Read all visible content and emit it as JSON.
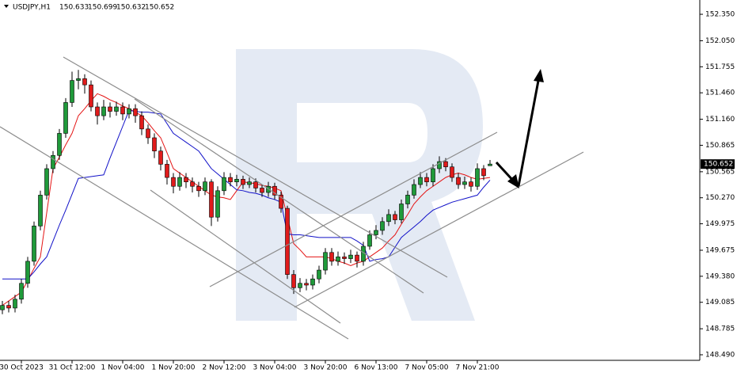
{
  "chart_data": {
    "type": "candlestick",
    "symbol": "USDJPY,H1",
    "categories": [
      null,
      null,
      null,
      "30 Oct 2023",
      null,
      null,
      null,
      null,
      null,
      null,
      null,
      "31 Oct 12:00",
      null,
      null,
      null,
      null,
      null,
      null,
      null,
      "1 Nov 04:00",
      null,
      null,
      null,
      null,
      null,
      null,
      null,
      "1 Nov 20:00",
      null,
      null,
      null,
      null,
      null,
      null,
      null,
      "2 Nov 12:00",
      null,
      null,
      null,
      null,
      null,
      null,
      null,
      "3 Nov 04:00",
      null,
      null,
      null,
      null,
      null,
      null,
      null,
      "3 Nov 20:00",
      null,
      null,
      null,
      null,
      null,
      null,
      null,
      "6 Nov 13:00",
      null,
      null,
      null,
      null,
      null,
      null,
      null,
      "7 Nov 05:00",
      null,
      null,
      null,
      null,
      null,
      null,
      null,
      "7 Nov 21:00",
      null,
      null
    ],
    "open": [
      149.0,
      149.05,
      149.02,
      149.12,
      149.3,
      149.55,
      149.95,
      150.3,
      150.6,
      150.75,
      151.0,
      151.35,
      151.6,
      151.62,
      151.55,
      151.3,
      151.2,
      151.3,
      151.25,
      151.3,
      151.22,
      151.28,
      151.2,
      151.05,
      150.95,
      150.8,
      150.65,
      150.5,
      150.4,
      150.5,
      150.45,
      150.4,
      150.35,
      150.45,
      150.05,
      150.35,
      150.5,
      150.45,
      150.48,
      150.42,
      150.45,
      150.38,
      150.33,
      150.4,
      150.3,
      150.15,
      149.4,
      149.25,
      149.3,
      149.28,
      149.35,
      149.45,
      149.65,
      149.55,
      149.6,
      149.58,
      149.62,
      149.55,
      149.72,
      149.85,
      149.9,
      150.0,
      150.08,
      150.02,
      150.2,
      150.3,
      150.42,
      150.5,
      150.45,
      150.6,
      150.68,
      150.62,
      150.5,
      150.42,
      150.45,
      150.4,
      150.6,
      150.633
    ],
    "high": [
      149.1,
      149.1,
      149.17,
      149.35,
      149.6,
      150.0,
      150.35,
      150.65,
      150.8,
      151.05,
      151.4,
      151.7,
      151.72,
      151.67,
      151.6,
      151.35,
      151.38,
      151.35,
      151.36,
      151.35,
      151.33,
      151.33,
      151.25,
      151.1,
      151.0,
      150.85,
      150.7,
      150.55,
      150.56,
      150.55,
      150.5,
      150.45,
      150.5,
      150.48,
      150.4,
      150.56,
      150.55,
      150.53,
      150.52,
      150.5,
      150.49,
      150.42,
      150.45,
      150.44,
      150.34,
      150.18,
      149.45,
      149.36,
      149.35,
      149.4,
      149.5,
      149.7,
      149.7,
      149.66,
      149.65,
      149.68,
      149.66,
      149.77,
      149.9,
      149.96,
      150.05,
      150.14,
      150.12,
      150.25,
      150.35,
      150.48,
      150.56,
      150.55,
      150.65,
      150.74,
      150.72,
      150.66,
      150.55,
      150.51,
      150.5,
      150.66,
      150.64,
      150.699
    ],
    "low": [
      148.95,
      148.97,
      148.97,
      149.07,
      149.25,
      149.5,
      149.9,
      150.25,
      150.55,
      150.7,
      150.95,
      151.3,
      151.5,
      151.45,
      151.25,
      151.1,
      151.15,
      151.18,
      151.2,
      151.15,
      151.17,
      151.12,
      150.98,
      150.88,
      150.72,
      150.58,
      150.42,
      150.32,
      150.35,
      150.38,
      150.33,
      150.28,
      150.3,
      149.95,
      150.0,
      150.3,
      150.4,
      150.4,
      150.37,
      150.38,
      150.33,
      150.28,
      150.28,
      150.25,
      150.1,
      149.35,
      149.18,
      149.2,
      149.22,
      149.23,
      149.3,
      149.4,
      149.5,
      149.5,
      149.52,
      149.53,
      149.48,
      149.5,
      149.68,
      149.8,
      149.85,
      149.95,
      149.97,
      149.98,
      150.15,
      150.26,
      150.38,
      150.4,
      150.4,
      150.55,
      150.57,
      150.45,
      150.37,
      150.37,
      150.34,
      150.36,
      150.47,
      150.632
    ],
    "close": [
      149.05,
      149.02,
      149.12,
      149.3,
      149.55,
      149.95,
      150.3,
      150.6,
      150.75,
      151.0,
      151.35,
      151.6,
      151.62,
      151.55,
      151.3,
      151.2,
      151.3,
      151.25,
      151.3,
      151.22,
      151.28,
      151.2,
      151.05,
      150.95,
      150.8,
      150.65,
      150.5,
      150.4,
      150.5,
      150.45,
      150.4,
      150.35,
      150.45,
      150.05,
      150.35,
      150.5,
      150.45,
      150.48,
      150.42,
      150.45,
      150.38,
      150.33,
      150.4,
      150.3,
      150.15,
      149.4,
      149.25,
      149.3,
      149.28,
      149.35,
      149.45,
      149.65,
      149.55,
      149.6,
      149.58,
      149.62,
      149.55,
      149.72,
      149.85,
      149.9,
      150.0,
      150.08,
      150.02,
      150.2,
      150.3,
      150.42,
      150.5,
      150.45,
      150.6,
      150.68,
      150.62,
      150.5,
      150.42,
      150.45,
      150.4,
      150.6,
      150.52,
      150.652
    ],
    "up_color": "#1f9a3a",
    "down_color": "#e01b1b",
    "series": [
      {
        "color": "#e41414",
        "values": [
          149.05,
          149.1,
          149.15,
          149.2,
          149.33,
          149.47,
          149.6,
          150.1,
          150.6,
          150.73,
          150.87,
          151.0,
          151.2,
          151.28,
          151.37,
          151.45,
          151.42,
          151.38,
          151.35,
          151.31,
          151.28,
          151.24,
          151.2,
          151.12,
          151.03,
          150.95,
          150.78,
          150.6,
          150.55,
          150.5,
          150.45,
          150.4,
          150.35,
          150.3,
          150.28,
          150.27,
          150.25,
          150.35,
          150.45,
          150.44,
          150.43,
          150.41,
          150.4,
          150.38,
          150.35,
          150.05,
          149.75,
          149.68,
          149.6,
          149.6,
          149.6,
          149.6,
          149.58,
          149.55,
          149.53,
          149.5,
          149.53,
          149.55,
          149.6,
          149.65,
          149.7,
          149.78,
          149.85,
          149.97,
          150.08,
          150.2,
          150.28,
          150.35,
          150.4,
          150.45,
          150.5,
          150.53,
          150.55,
          150.53,
          150.5,
          150.48,
          150.49,
          150.5
        ]
      },
      {
        "color": "#1010c8",
        "values": [
          149.35,
          149.35,
          149.35,
          149.35,
          149.35,
          149.43,
          149.52,
          149.6,
          149.78,
          149.96,
          150.13,
          150.31,
          150.49,
          150.5,
          150.51,
          150.52,
          150.53,
          150.72,
          150.9,
          151.08,
          151.26,
          151.25,
          151.24,
          151.24,
          151.23,
          151.22,
          151.11,
          151.0,
          150.95,
          150.9,
          150.85,
          150.8,
          150.7,
          150.6,
          150.54,
          150.48,
          150.42,
          150.36,
          150.35,
          150.33,
          150.32,
          150.3,
          150.27,
          150.25,
          150.22,
          149.86,
          149.85,
          149.85,
          149.84,
          149.83,
          149.82,
          149.82,
          149.82,
          149.82,
          149.82,
          149.82,
          149.78,
          149.73,
          149.55,
          149.57,
          149.58,
          149.6,
          149.71,
          149.82,
          149.88,
          149.94,
          150.0,
          150.07,
          150.13,
          150.16,
          150.19,
          150.22,
          150.24,
          150.26,
          150.28,
          150.3,
          150.39,
          150.47
        ]
      }
    ],
    "ylim": [
      148.427,
      152.512
    ],
    "yticks": [
      {
        "value": 148.49,
        "label": "148.490"
      },
      148.785,
      149.085,
      {
        "value": 149.38,
        "label": "149.380"
      },
      149.675,
      149.975,
      {
        "value": 150.27,
        "label": "150.270"
      },
      150.565,
      150.865,
      {
        "value": 151.16,
        "label": "151.160"
      },
      {
        "value": 151.46,
        "label": "151.460"
      },
      151.755,
      {
        "value": 152.05,
        "label": "152.050"
      },
      {
        "value": 152.35,
        "label": "152.350"
      }
    ],
    "grid": false
  }
}
